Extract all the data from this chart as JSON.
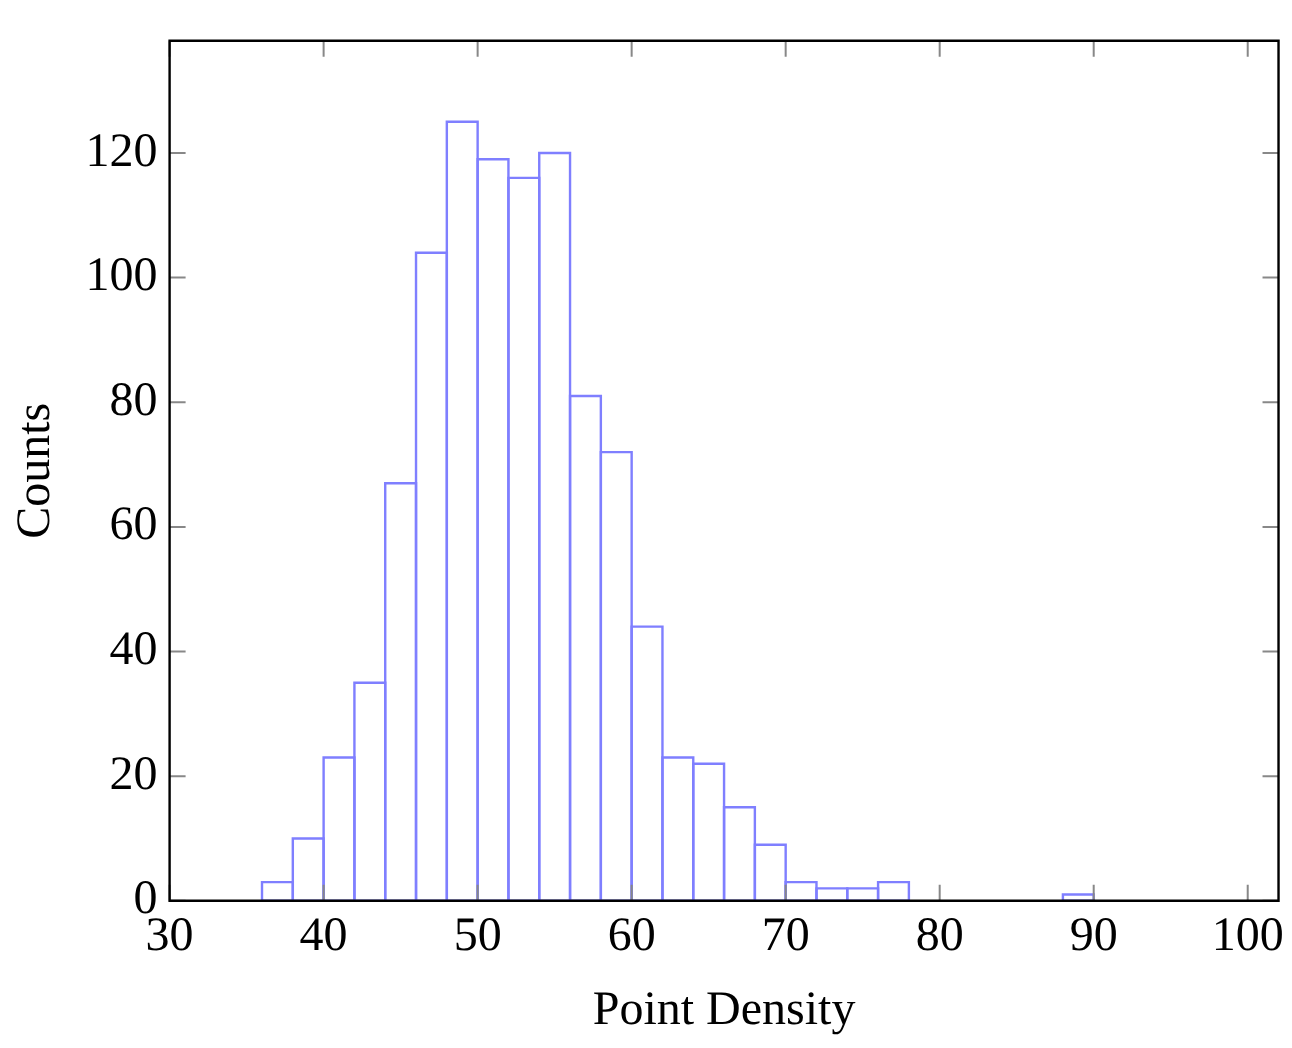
{
  "chart_data": {
    "type": "histogram",
    "xlabel": "Point Density",
    "ylabel": "Counts",
    "bins": [
      36,
      38,
      40,
      42,
      44,
      46,
      48,
      50,
      52,
      54,
      56,
      58,
      60,
      62,
      64,
      66,
      68,
      70,
      72,
      74,
      76,
      78,
      80,
      82,
      84,
      86,
      88,
      90
    ],
    "values": [
      3,
      10,
      23,
      35,
      67,
      104,
      125,
      119,
      116,
      120,
      81,
      72,
      44,
      23,
      22,
      15,
      9,
      3,
      2,
      2,
      3,
      0,
      0,
      0,
      0,
      0,
      1
    ],
    "color": "#7f7fff",
    "xlim": [
      30,
      102
    ],
    "ylim": [
      0,
      138
    ],
    "xticks": [
      30,
      40,
      50,
      60,
      70,
      80,
      90,
      100
    ],
    "yticks": [
      0,
      20,
      40,
      60,
      80,
      100,
      120
    ],
    "grid": false,
    "legend": false
  }
}
